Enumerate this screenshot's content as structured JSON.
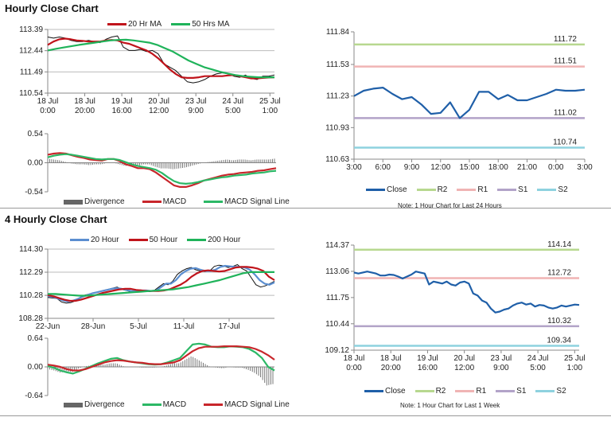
{
  "sections": {
    "hourly_title": "Hourly Close Chart",
    "four_hourly_title": "4 Hourly Close Chart",
    "note_24h": "Note: 1 Hour Chart for Last 24 Hours",
    "note_1w": "Note: 1 Hour Chart for Last 1 Week"
  },
  "chart_data": [
    {
      "id": "hourly-price",
      "type": "line",
      "title": "Hourly Close Chart",
      "ylim": [
        110.54,
        113.39
      ],
      "yticks": [
        "113.39",
        "112.44",
        "111.49",
        "110.54"
      ],
      "grid": true,
      "xticks": [
        "18 Jul|0:00",
        "18 Jul|20:00",
        "19 Jul|16:00",
        "20 Jul|12:00",
        "23 Jul|9:00",
        "24 Jul|5:00",
        "25 Jul|1:00"
      ],
      "legend": [
        "20 Hr MA",
        "50 Hrs MA"
      ],
      "legend_placement": "top",
      "series": [
        {
          "role": "close",
          "color": "#111111",
          "values": [
            113.05,
            113.0,
            113.05,
            113.0,
            112.9,
            112.85,
            112.85,
            112.9,
            112.85,
            112.8,
            112.95,
            113.05,
            113.1,
            112.6,
            112.45,
            112.45,
            112.5,
            112.4,
            112.45,
            112.3,
            111.85,
            111.7,
            111.55,
            111.3,
            111.05,
            111.0,
            111.05,
            111.15,
            111.3,
            111.4,
            111.45,
            111.4,
            111.3,
            111.25,
            111.35,
            111.2,
            111.15,
            111.3,
            111.3,
            111.35
          ]
        },
        {
          "name": "20 Hr MA",
          "color": "#c0141b",
          "values": [
            112.7,
            112.85,
            112.95,
            112.98,
            112.95,
            112.9,
            112.88,
            112.85,
            112.85,
            112.85,
            112.9,
            112.92,
            112.9,
            112.8,
            112.75,
            112.65,
            112.55,
            112.45,
            112.3,
            112.1,
            111.85,
            111.6,
            111.4,
            111.25,
            111.22,
            111.22,
            111.25,
            111.3,
            111.3,
            111.3,
            111.3,
            111.33,
            111.35,
            111.3,
            111.25,
            111.2,
            111.2,
            111.22,
            111.24,
            111.25
          ]
        },
        {
          "name": "50 Hrs MA",
          "color": "#1fb35a",
          "values": [
            112.45,
            112.52,
            112.58,
            112.64,
            112.7,
            112.75,
            112.8,
            112.85,
            112.9,
            112.92,
            112.93,
            112.9,
            112.85,
            112.8,
            112.7,
            112.55,
            112.4,
            112.2,
            112.0,
            111.85,
            111.7,
            111.6,
            111.5,
            111.42,
            111.35,
            111.3,
            111.27,
            111.25,
            111.25,
            111.25
          ]
        }
      ]
    },
    {
      "id": "hourly-macd",
      "type": "line",
      "ylim": [
        -0.54,
        0.54
      ],
      "yticks": [
        "0.54",
        "0.00",
        "-0.54"
      ],
      "grid": false,
      "legend": [
        "Divergence",
        "MACD",
        "MACD Signal Line"
      ],
      "legend_placement": "bottom",
      "series": [
        {
          "name": "MACD",
          "color": "#c8262b",
          "values": [
            0.15,
            0.17,
            0.18,
            0.17,
            0.14,
            0.11,
            0.09,
            0.06,
            0.05,
            0.04,
            0.07,
            0.07,
            0.03,
            -0.03,
            -0.06,
            -0.1,
            -0.1,
            -0.12,
            -0.18,
            -0.26,
            -0.34,
            -0.42,
            -0.45,
            -0.45,
            -0.42,
            -0.38,
            -0.33,
            -0.3,
            -0.27,
            -0.24,
            -0.22,
            -0.21,
            -0.19,
            -0.18,
            -0.17,
            -0.15,
            -0.14,
            -0.12,
            -0.1
          ]
        },
        {
          "name": "MACD Signal Line",
          "color": "#2cb866",
          "values": [
            0.1,
            0.13,
            0.15,
            0.16,
            0.15,
            0.13,
            0.11,
            0.09,
            0.07,
            0.06,
            0.07,
            0.07,
            0.05,
            0.01,
            -0.03,
            -0.06,
            -0.08,
            -0.1,
            -0.13,
            -0.19,
            -0.27,
            -0.34,
            -0.38,
            -0.39,
            -0.38,
            -0.36,
            -0.33,
            -0.31,
            -0.29,
            -0.27,
            -0.26,
            -0.24,
            -0.23,
            -0.22,
            -0.2,
            -0.19,
            -0.18,
            -0.16,
            -0.15
          ]
        }
      ],
      "divergence": {
        "name": "Divergence",
        "color": "#777777",
        "of": [
          "MACD",
          "MACD Signal Line"
        ]
      }
    },
    {
      "id": "hourly-pivots",
      "type": "line",
      "ylim": [
        110.63,
        111.84
      ],
      "yticks": [
        "111.84",
        "111.53",
        "111.23",
        "110.93",
        "110.63"
      ],
      "grid": false,
      "xticks": [
        "3:00",
        "6:00",
        "9:00",
        "12:00",
        "15:00",
        "18:00",
        "21:00",
        "0:00",
        "3:00"
      ],
      "legend": [
        "Close",
        "R2",
        "R1",
        "S1",
        "S2"
      ],
      "legend_placement": "bottom",
      "series": [
        {
          "name": "Close",
          "color": "#1f5fa8",
          "values": [
            111.23,
            111.28,
            111.3,
            111.31,
            111.25,
            111.2,
            111.22,
            111.15,
            111.06,
            111.07,
            111.17,
            111.02,
            111.1,
            111.27,
            111.27,
            111.2,
            111.24,
            111.19,
            111.19,
            111.22,
            111.25,
            111.29,
            111.28,
            111.28,
            111.29
          ]
        }
      ],
      "levels": [
        {
          "name": "R2",
          "value": 111.72,
          "label": "111.72",
          "color": "#b7d88f"
        },
        {
          "name": "R1",
          "value": 111.51,
          "label": "111.51",
          "color": "#f0b4b4"
        },
        {
          "name": "S1",
          "value": 111.02,
          "label": "111.02",
          "color": "#b2a3c8"
        },
        {
          "name": "S2",
          "value": 110.74,
          "label": "110.74",
          "color": "#8ed2df"
        }
      ]
    },
    {
      "id": "four-hourly-price",
      "type": "line",
      "title": "4 Hourly Close Chart",
      "ylim": [
        108.28,
        114.3
      ],
      "yticks": [
        "114.30",
        "112.29",
        "110.28",
        "108.28"
      ],
      "grid": true,
      "xticks": [
        "22-Jun",
        "28-Jun",
        "5-Jul",
        "11-Jul",
        "17-Jul"
      ],
      "legend": [
        "20 Hour",
        "50 Hour",
        "200 Hour"
      ],
      "legend_placement": "top",
      "series": [
        {
          "role": "close",
          "color": "#111111",
          "values": [
            110.1,
            110.05,
            110.0,
            109.7,
            109.6,
            109.65,
            109.8,
            110.1,
            110.3,
            110.4,
            110.5,
            110.6,
            110.7,
            110.8,
            110.9,
            111.0,
            110.8,
            110.7,
            110.6,
            110.7,
            110.75,
            110.7,
            110.6,
            110.7,
            111.0,
            111.3,
            111.2,
            111.5,
            112.1,
            112.4,
            112.6,
            112.7,
            112.5,
            112.4,
            112.35,
            112.4,
            112.8,
            112.9,
            112.85,
            112.7,
            112.8,
            112.95,
            112.6,
            112.4,
            111.8,
            111.2,
            111.0,
            111.1,
            111.3,
            111.5
          ]
        },
        {
          "name": "20 Hour",
          "color": "#5b8ed0",
          "values": [
            110.2,
            110.15,
            110.0,
            109.85,
            109.75,
            109.8,
            109.95,
            110.15,
            110.3,
            110.45,
            110.55,
            110.65,
            110.75,
            110.85,
            110.9,
            110.85,
            110.75,
            110.65,
            110.65,
            110.7,
            110.7,
            110.65,
            110.7,
            111.0,
            111.3,
            111.3,
            111.6,
            112.1,
            112.4,
            112.6,
            112.65,
            112.5,
            112.4,
            112.4,
            112.5,
            112.75,
            112.85,
            112.8,
            112.75,
            112.75,
            112.7,
            112.5,
            112.1,
            111.6,
            111.3,
            111.2,
            111.4
          ]
        },
        {
          "name": "50 Hour",
          "color": "#c0141b",
          "values": [
            110.3,
            110.2,
            110.05,
            109.9,
            109.8,
            109.8,
            109.9,
            110.05,
            110.2,
            110.35,
            110.5,
            110.6,
            110.7,
            110.8,
            110.85,
            110.85,
            110.75,
            110.7,
            110.65,
            110.65,
            110.65,
            110.7,
            110.8,
            111.0,
            111.2,
            111.5,
            111.9,
            112.2,
            112.4,
            112.45,
            112.4,
            112.35,
            112.4,
            112.55,
            112.7,
            112.75,
            112.75,
            112.7,
            112.6,
            112.4,
            111.9,
            111.6
          ]
        },
        {
          "name": "200 Hour",
          "color": "#1fb35a",
          "values": [
            110.4,
            110.4,
            110.35,
            110.3,
            110.25,
            110.25,
            110.3,
            110.35,
            110.4,
            110.45,
            110.5,
            110.55,
            110.6,
            110.65,
            110.7,
            110.75,
            110.8,
            110.9,
            111.0,
            111.15,
            111.3,
            111.45,
            111.6,
            111.8,
            112.0,
            112.2,
            112.3,
            112.3,
            112.3,
            112.3
          ]
        }
      ]
    },
    {
      "id": "four-hourly-macd",
      "type": "line",
      "ylim": [
        -0.64,
        0.64
      ],
      "yticks": [
        "0.64",
        "0.00",
        "-0.64"
      ],
      "grid": false,
      "legend": [
        "Divergence",
        "MACD",
        "MACD Signal Line"
      ],
      "legend_placement": "bottom",
      "series": [
        {
          "name": "MACD",
          "color": "#2cb866",
          "values": [
            0.02,
            -0.02,
            -0.08,
            -0.12,
            -0.15,
            -0.1,
            -0.04,
            0.02,
            0.08,
            0.13,
            0.18,
            0.2,
            0.15,
            0.12,
            0.1,
            0.08,
            0.06,
            0.05,
            0.06,
            0.1,
            0.15,
            0.2,
            0.35,
            0.5,
            0.52,
            0.5,
            0.45,
            0.44,
            0.44,
            0.46,
            0.45,
            0.44,
            0.4,
            0.32,
            0.2,
            0.0,
            -0.08
          ]
        },
        {
          "name": "MACD Signal Line",
          "color": "#c8262b",
          "values": [
            0.05,
            0.03,
            0.0,
            -0.05,
            -0.08,
            -0.08,
            -0.05,
            0.0,
            0.05,
            0.1,
            0.13,
            0.15,
            0.14,
            0.12,
            0.1,
            0.09,
            0.07,
            0.06,
            0.06,
            0.08,
            0.1,
            0.15,
            0.25,
            0.35,
            0.42,
            0.45,
            0.45,
            0.45,
            0.46,
            0.46,
            0.46,
            0.45,
            0.44,
            0.4,
            0.34,
            0.26,
            0.16
          ]
        }
      ],
      "divergence": {
        "name": "Divergence",
        "color": "#777777",
        "of": [
          "MACD",
          "MACD Signal Line"
        ]
      }
    },
    {
      "id": "weekly-pivots",
      "type": "line",
      "ylim": [
        109.12,
        114.37
      ],
      "yticks": [
        "114.37",
        "113.06",
        "111.75",
        "110.44",
        "109.12"
      ],
      "grid": false,
      "xticks": [
        "18 Jul|0:00",
        "18 Jul|20:00",
        "19 Jul|16:00",
        "20 Jul|12:00",
        "23 Jul|9:00",
        "24 Jul|5:00",
        "25 Jul|1:00"
      ],
      "legend": [
        "Close",
        "R2",
        "R1",
        "S1",
        "S2"
      ],
      "legend_placement": "bottom",
      "series": [
        {
          "name": "Close",
          "color": "#1f5fa8",
          "values": [
            113.0,
            112.95,
            113.0,
            113.05,
            113.0,
            112.95,
            112.85,
            112.85,
            112.9,
            112.88,
            112.8,
            112.7,
            112.8,
            112.9,
            113.05,
            113.0,
            112.95,
            112.4,
            112.55,
            112.5,
            112.45,
            112.55,
            112.4,
            112.35,
            112.5,
            112.55,
            112.45,
            111.95,
            111.85,
            111.6,
            111.5,
            111.2,
            111.0,
            111.05,
            111.15,
            111.2,
            111.35,
            111.45,
            111.5,
            111.4,
            111.45,
            111.3,
            111.38,
            111.35,
            111.25,
            111.2,
            111.25,
            111.35,
            111.3,
            111.35,
            111.4,
            111.38
          ]
        }
      ],
      "levels": [
        {
          "name": "R2",
          "value": 114.14,
          "label": "114.14",
          "color": "#b7d88f"
        },
        {
          "name": "R1",
          "value": 112.72,
          "label": "112.72",
          "color": "#f0b4b4"
        },
        {
          "name": "S1",
          "value": 110.32,
          "label": "110.32",
          "color": "#b2a3c8"
        },
        {
          "name": "S2",
          "value": 109.34,
          "label": "109.34",
          "color": "#8ed2df"
        }
      ]
    }
  ]
}
